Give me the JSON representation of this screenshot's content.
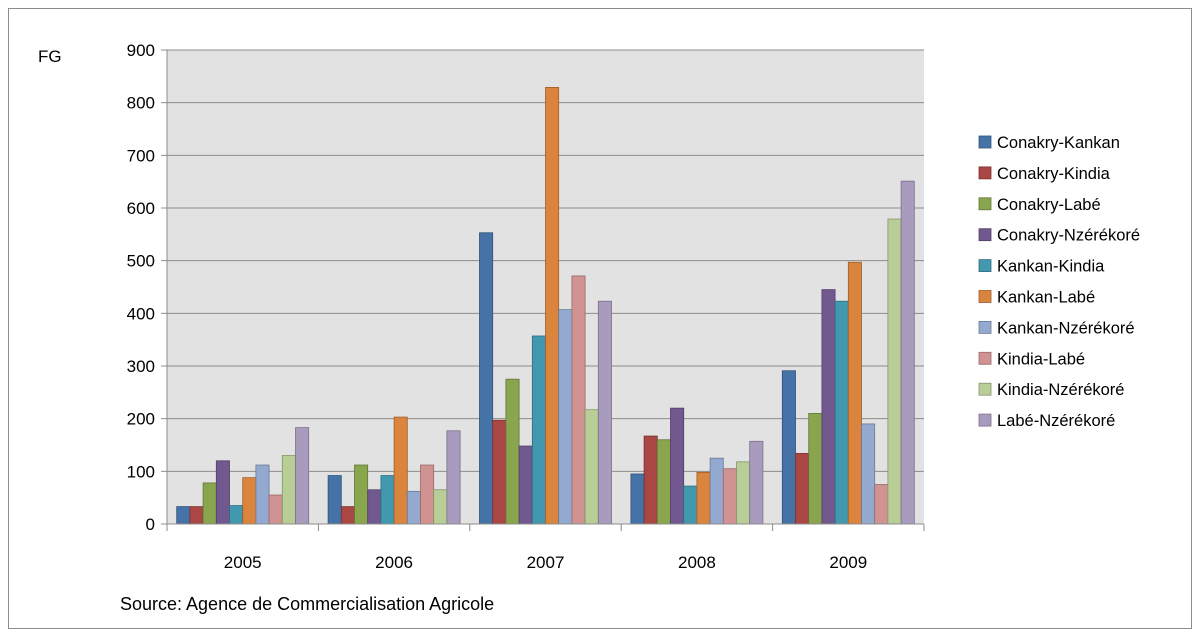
{
  "chart_data": {
    "type": "bar",
    "ylabel": "FG",
    "categories": [
      "2005",
      "2006",
      "2007",
      "2008",
      "2009"
    ],
    "ylim": [
      0,
      900
    ],
    "yticks": [
      0,
      100,
      200,
      300,
      400,
      500,
      600,
      700,
      800,
      900
    ],
    "grid": true,
    "legend_position": "right",
    "source": "Source: Agence de Commercialisation Agricole",
    "series": [
      {
        "name": "Conakry-Kankan",
        "color": "#4572A7",
        "values": [
          33,
          92,
          553,
          95,
          291
        ]
      },
      {
        "name": "Conakry-Kindia",
        "color": "#AA4643",
        "values": [
          33,
          33,
          197,
          167,
          134
        ]
      },
      {
        "name": "Conakry-Labé",
        "color": "#89A54E",
        "values": [
          78,
          112,
          275,
          160,
          210
        ]
      },
      {
        "name": "Conakry-Nzérékoré",
        "color": "#71588F",
        "values": [
          120,
          65,
          148,
          220,
          445
        ]
      },
      {
        "name": "Kankan-Kindia",
        "color": "#4198AF",
        "values": [
          35,
          92,
          357,
          72,
          423
        ]
      },
      {
        "name": "Kankan-Labé",
        "color": "#DB843D",
        "values": [
          88,
          203,
          829,
          98,
          497
        ]
      },
      {
        "name": "Kankan-Nzérékoré",
        "color": "#93A9CF",
        "values": [
          112,
          62,
          407,
          125,
          190
        ]
      },
      {
        "name": "Kindia-Labé",
        "color": "#D19392",
        "values": [
          55,
          112,
          471,
          105,
          75
        ]
      },
      {
        "name": "Kindia-Nzérékoré",
        "color": "#B9CD96",
        "values": [
          130,
          65,
          217,
          118,
          579
        ]
      },
      {
        "name": "Labé-Nzérékoré",
        "color": "#A99BBD",
        "values": [
          183,
          177,
          423,
          157,
          651
        ]
      }
    ]
  }
}
